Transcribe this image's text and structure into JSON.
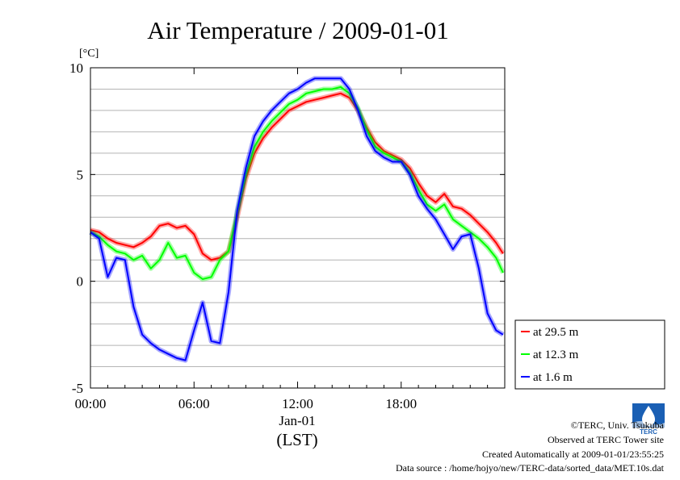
{
  "chart_data": {
    "type": "line",
    "title": "Air Temperature / 2009-01-01",
    "unit_label": "[°C]",
    "xlabel_date": "Jan-01",
    "xlabel": "(LST)",
    "x_unit": "hours",
    "xlim": [
      0,
      24
    ],
    "ylim": [
      -5,
      10
    ],
    "x_ticks": [
      {
        "value": 0,
        "label": "00:00"
      },
      {
        "value": 6,
        "label": "06:00"
      },
      {
        "value": 12,
        "label": "12:00"
      },
      {
        "value": 18,
        "label": "18:00"
      }
    ],
    "y_ticks": [
      {
        "value": 10,
        "label": "10"
      },
      {
        "value": 5,
        "label": "5"
      },
      {
        "value": 0,
        "label": "0"
      },
      {
        "value": -5,
        "label": "-5"
      }
    ],
    "y_gridlines": [
      -4,
      -3,
      -2,
      -1,
      0,
      1,
      2,
      3,
      4,
      5,
      6,
      7,
      8,
      9,
      10
    ],
    "legend_position": "bottom-right outside plot",
    "x": [
      0,
      0.5,
      1,
      1.5,
      2,
      2.5,
      3,
      3.5,
      4,
      4.5,
      5,
      5.5,
      6,
      6.5,
      7,
      7.5,
      8,
      8.5,
      9,
      9.5,
      10,
      10.5,
      11,
      11.5,
      12,
      12.5,
      13,
      13.5,
      14,
      14.5,
      15,
      15.5,
      16,
      16.5,
      17,
      17.5,
      18,
      18.5,
      19,
      19.5,
      20,
      20.5,
      21,
      21.5,
      22,
      22.5,
      23,
      23.5,
      23.9
    ],
    "series": [
      {
        "name": "at 29.5 m",
        "color": "#ff0000",
        "values": [
          2.4,
          2.3,
          2.0,
          1.8,
          1.7,
          1.6,
          1.8,
          2.1,
          2.6,
          2.7,
          2.5,
          2.6,
          2.2,
          1.3,
          1.0,
          1.1,
          1.4,
          3.0,
          4.8,
          6.0,
          6.7,
          7.2,
          7.6,
          8.0,
          8.2,
          8.4,
          8.5,
          8.6,
          8.7,
          8.8,
          8.6,
          8.0,
          7.2,
          6.5,
          6.1,
          5.9,
          5.7,
          5.3,
          4.6,
          4.0,
          3.7,
          4.1,
          3.5,
          3.4,
          3.1,
          2.7,
          2.3,
          1.8,
          1.3
        ]
      },
      {
        "name": "at 12.3 m",
        "color": "#00ff00",
        "values": [
          2.3,
          2.1,
          1.7,
          1.4,
          1.3,
          1.0,
          1.2,
          0.6,
          1.0,
          1.8,
          1.1,
          1.2,
          0.4,
          0.1,
          0.2,
          1.0,
          1.4,
          3.2,
          5.0,
          6.3,
          7.0,
          7.5,
          7.9,
          8.3,
          8.5,
          8.8,
          8.9,
          9.0,
          9.0,
          9.1,
          8.8,
          8.1,
          7.1,
          6.3,
          6.0,
          5.8,
          5.6,
          5.1,
          4.3,
          3.6,
          3.3,
          3.6,
          2.9,
          2.6,
          2.3,
          2.0,
          1.6,
          1.1,
          0.4
        ]
      },
      {
        "name": "at 1.6 m",
        "color": "#0000ff",
        "values": [
          2.3,
          2.0,
          0.2,
          1.1,
          1.0,
          -1.2,
          -2.5,
          -2.9,
          -3.2,
          -3.4,
          -3.6,
          -3.7,
          -2.3,
          -1.0,
          -2.8,
          -2.9,
          -0.5,
          3.3,
          5.3,
          6.8,
          7.5,
          8.0,
          8.4,
          8.8,
          9.0,
          9.3,
          9.5,
          9.5,
          9.5,
          9.5,
          9.0,
          8.0,
          6.8,
          6.1,
          5.8,
          5.6,
          5.6,
          5.0,
          4.0,
          3.4,
          2.9,
          2.2,
          1.5,
          2.1,
          2.2,
          0.6,
          -1.5,
          -2.3,
          -2.5
        ]
      }
    ]
  },
  "credits": {
    "copyright": "©TERC, Univ. Tsukuba",
    "site": "Observed at TERC Tower site",
    "created": "Created Automatically at 2009-01-01/23:55:25",
    "source": "Data source : /home/hojyo/new/TERC-data/sorted_data/MET.10s.dat",
    "logo_text": "TERC"
  }
}
